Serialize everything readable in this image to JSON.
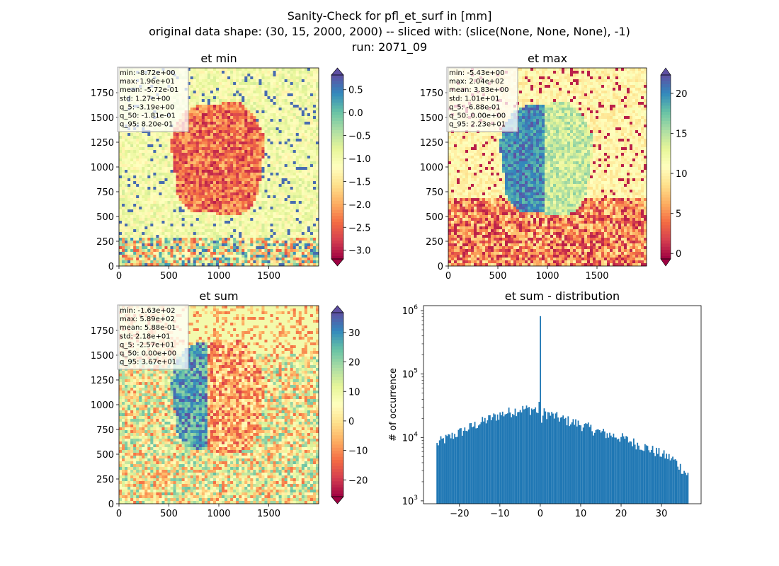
{
  "figure": {
    "title_lines": [
      "Sanity-Check for pfl_et_surf in [mm]",
      "original data shape: (30, 15, 2000, 2000) -- sliced with: (slice(None, None, None), -1)",
      "run: 2071_09"
    ]
  },
  "chart_data": [
    {
      "type": "heatmap",
      "title": "et min",
      "xlim": [
        0,
        2000
      ],
      "ylim": [
        0,
        2000
      ],
      "x_ticks": [
        "0",
        "500",
        "1000",
        "1500"
      ],
      "y_ticks": [
        "0",
        "250",
        "500",
        "750",
        "1000",
        "1250",
        "1500",
        "1750"
      ],
      "stats": [
        "min: -8.72e+00",
        "max: 1.96e+01",
        "mean: -5.72e-01",
        "std: 1.27e+00",
        "q_5: -3.19e+00",
        "q_50: -1.81e-01",
        "q_95: 8.20e-01"
      ],
      "colorbar": {
        "colormap": "Spectral",
        "range": [
          -3.19,
          0.82
        ],
        "extend": "both",
        "ticks": [
          "0.5",
          "0.0",
          "−0.5",
          "−1.0",
          "−1.5",
          "−2.0",
          "−2.5",
          "−3.0"
        ],
        "tick_values": [
          0.5,
          0.0,
          -0.5,
          -1.0,
          -1.5,
          -2.0,
          -2.5,
          -3.0
        ]
      }
    },
    {
      "type": "heatmap",
      "title": "et max",
      "xlim": [
        0,
        2000
      ],
      "ylim": [
        0,
        2000
      ],
      "x_ticks": [
        "0",
        "500",
        "1000",
        "1500"
      ],
      "y_ticks": [
        "0",
        "250",
        "500",
        "750",
        "1000",
        "1250",
        "1500",
        "1750"
      ],
      "stats": [
        "min: -5.43e+00",
        "max: 2.04e+02",
        "mean: 3.83e+00",
        "std: 1.01e+01",
        "q_5: -6.88e-01",
        "q_50: 0.00e+00",
        "q_95: 2.23e+01"
      ],
      "colorbar": {
        "colormap": "Spectral",
        "range": [
          -0.688,
          22.3
        ],
        "extend": "both",
        "ticks": [
          "20",
          "15",
          "10",
          "5",
          "0"
        ],
        "tick_values": [
          20,
          15,
          10,
          5,
          0
        ]
      }
    },
    {
      "type": "heatmap",
      "title": "et sum",
      "xlim": [
        0,
        2000
      ],
      "ylim": [
        0,
        2000
      ],
      "x_ticks": [
        "0",
        "500",
        "1000",
        "1500"
      ],
      "y_ticks": [
        "0",
        "250",
        "500",
        "750",
        "1000",
        "1250",
        "1500",
        "1750"
      ],
      "stats": [
        "min: -1.63e+02",
        "max: 5.89e+02",
        "mean: 5.88e-01",
        "std: 2.18e+01",
        "q_5: -2.57e+01",
        "q_50: 0.00e+00",
        "q_95: 3.67e+01"
      ],
      "colorbar": {
        "colormap": "Spectral",
        "range": [
          -25.7,
          36.7
        ],
        "extend": "both",
        "ticks": [
          "30",
          "20",
          "10",
          "0",
          "−10",
          "−20"
        ],
        "tick_values": [
          30,
          20,
          10,
          0,
          -10,
          -20
        ]
      }
    },
    {
      "type": "bar",
      "title": "et sum - distribution",
      "ylabel": "# of occurrence",
      "xlabel": "",
      "yscale": "log",
      "ylim": [
        900,
        1200000
      ],
      "xlim": [
        -28.9,
        39.8
      ],
      "x_ticks": [
        "−20",
        "−10",
        "0",
        "10",
        "20",
        "30"
      ],
      "x_tick_values": [
        -20,
        -10,
        0,
        10,
        20,
        30
      ],
      "y_ticks": [
        {
          "base": "10",
          "exp": "3",
          "value": 1000
        },
        {
          "base": "10",
          "exp": "4",
          "value": 10000
        },
        {
          "base": "10",
          "exp": "5",
          "value": 100000
        },
        {
          "base": "10",
          "exp": "6",
          "value": 1000000
        }
      ],
      "color": "#1f77b4",
      "bins": {
        "start": -25.7,
        "end": 36.7,
        "count": 200
      },
      "profile": {
        "x": [
          -25.7,
          -25,
          -20,
          -15,
          -10,
          -5,
          -1,
          -0.3,
          0,
          0.3,
          1,
          5,
          10,
          15,
          20,
          25,
          30,
          33,
          36.7
        ],
        "counts": [
          7500,
          8500,
          12000,
          17000,
          23000,
          28000,
          28000,
          22000,
          820000,
          19000,
          25000,
          20000,
          16000,
          12000,
          10000,
          7500,
          5500,
          4500,
          2500
        ]
      }
    }
  ]
}
